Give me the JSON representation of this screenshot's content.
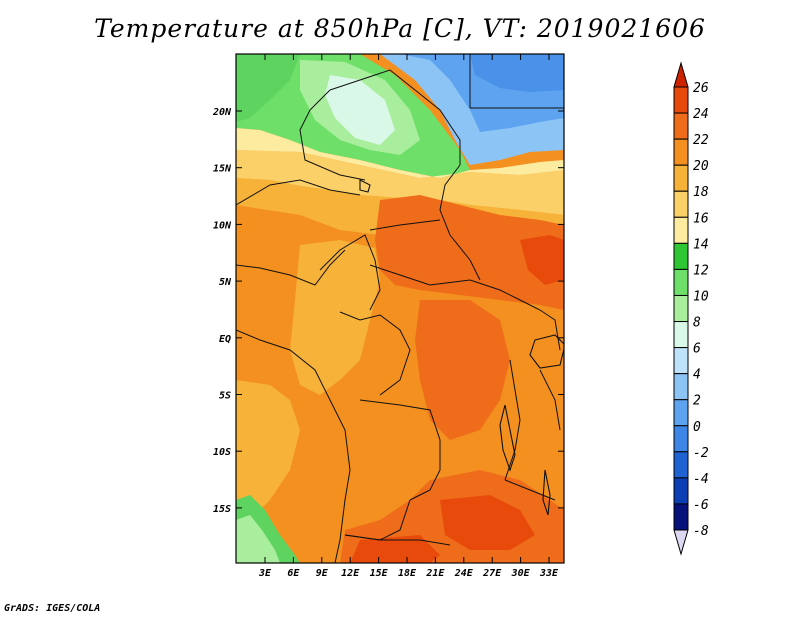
{
  "title": "Temperature at 850hPa [C], VT: 2019021606",
  "footer": "GrADS: IGES/COLA",
  "map": {
    "lat_labels": [
      "20N",
      "15N",
      "10N",
      "5N",
      "EQ",
      "5S",
      "10S",
      "15S"
    ],
    "lon_labels": [
      "3E",
      "6E",
      "9E",
      "12E",
      "15E",
      "18E",
      "21E",
      "24E",
      "27E",
      "30E",
      "33E"
    ]
  },
  "colorbar": {
    "labels": [
      "26",
      "24",
      "22",
      "20",
      "18",
      "16",
      "14",
      "12",
      "10",
      "8",
      "6",
      "4",
      "2",
      "0",
      "-2",
      "-4",
      "-6",
      "-8"
    ],
    "colors": [
      "#cc2200",
      "#e84a0c",
      "#ef6c1a",
      "#f39020",
      "#f7b23a",
      "#fbd068",
      "#fdeca0",
      "#2ec632",
      "#6ee06a",
      "#a8ee9c",
      "#d9f8e8",
      "#bfe2fb",
      "#8dc4f6",
      "#5ea3ef",
      "#3e86e6",
      "#1f63d3",
      "#0d3fb4",
      "#06127a",
      "#ddd8f2"
    ]
  },
  "colors": {
    "ocean_green": "#5fd35f",
    "sahara_green": "#6ee06a",
    "sahara_light": "#a8ee9c",
    "libya_blue": "#8dc4f6",
    "egypt_blue": "#5ea3ef",
    "sahel_yellow": "#fbd068",
    "tropics_orange": "#f39020",
    "hot_orange": "#ef6c1a",
    "hot_red": "#e84a0c",
    "border": "#111111"
  }
}
